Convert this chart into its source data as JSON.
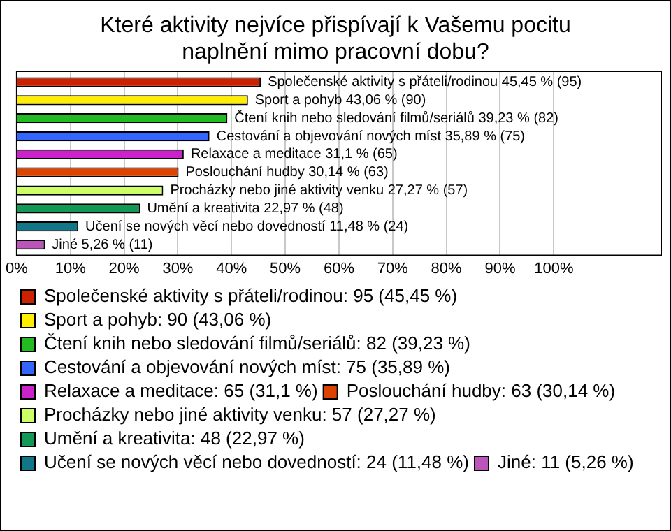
{
  "chart_data": {
    "type": "bar",
    "orientation": "horizontal",
    "title": "Které aktivity nejvíce přispívají k Vašemu pocitu naplnění mimo pracovní dobu?",
    "categories": [
      null
    ],
    "series": [
      {
        "name": "Společenské aktivity s přáteli/rodinou: 95 (45,45 %)",
        "color": "#cc2200",
        "values": [
          45.45
        ],
        "value_labels": [
          "Společenské aktivity s přáteli/rodinou 45,45 % (95)"
        ]
      },
      {
        "name": "Sport a pohyb: 90 (43,06 %)",
        "color": "#ffee00",
        "values": [
          43.06
        ],
        "value_labels": [
          "Sport a pohyb 43,06 % (90)"
        ]
      },
      {
        "name": "Čtení knih nebo sledování filmů/seriálů: 82 (39,23 %)",
        "color": "#22bb22",
        "values": [
          39.23
        ],
        "value_labels": [
          "Čtení knih nebo sledování filmů/seriálů 39,23 % (82)"
        ]
      },
      {
        "name": "Cestování a objevování nových míst: 75 (35,89 %)",
        "color": "#3366ff",
        "values": [
          35.89
        ],
        "value_labels": [
          "Cestování a objevování nových míst 35,89 % (75)"
        ]
      },
      {
        "name": "Relaxace a meditace: 65 (31,1 %)",
        "color": "#cc22cc",
        "values": [
          31.1
        ],
        "value_labels": [
          "Relaxace a meditace 31,1 % (65)"
        ]
      },
      {
        "name": "Poslouchání hudby: 63 (30,14 %)",
        "color": "#dd4400",
        "values": [
          30.14
        ],
        "value_labels": [
          "Poslouchání hudby 30,14 % (63)"
        ]
      },
      {
        "name": "Procházky nebo jiné aktivity venku: 57 (27,27 %)",
        "color": "#ccff66",
        "values": [
          27.27
        ],
        "value_labels": [
          "Procházky nebo jiné aktivity venku 27,27 % (57)"
        ]
      },
      {
        "name": "Umění a kreativita: 48 (22,97 %)",
        "color": "#119955",
        "values": [
          22.97
        ],
        "value_labels": [
          "Umění a kreativita 22,97 % (48)"
        ]
      },
      {
        "name": "Učení se nových věcí nebo dovedností: 24 (11,48 %)",
        "color": "#117788",
        "values": [
          11.48
        ],
        "value_labels": [
          "Učení se nových věcí nebo dovedností 11,48 % (24)"
        ]
      },
      {
        "name": "Jiné: 11 (5,26 %)",
        "color": "#bb55bb",
        "values": [
          5.26
        ],
        "value_labels": [
          "Jiné 5,26 % (11)"
        ]
      }
    ],
    "xlim": [
      0,
      120
    ],
    "xticks": [
      {
        "value": 0,
        "label": "0%"
      },
      {
        "value": 10,
        "label": "10%"
      },
      {
        "value": 20,
        "label": "20%"
      },
      {
        "value": 30,
        "label": "30%"
      },
      {
        "value": 40,
        "label": "40%"
      },
      {
        "value": 50,
        "label": "50%"
      },
      {
        "value": 60,
        "label": "60%"
      },
      {
        "value": 70,
        "label": "70%"
      },
      {
        "value": 80,
        "label": "80%"
      },
      {
        "value": 90,
        "label": "90%"
      },
      {
        "value": 100,
        "label": "100%"
      }
    ],
    "grid": "x",
    "legend": "bottom"
  }
}
